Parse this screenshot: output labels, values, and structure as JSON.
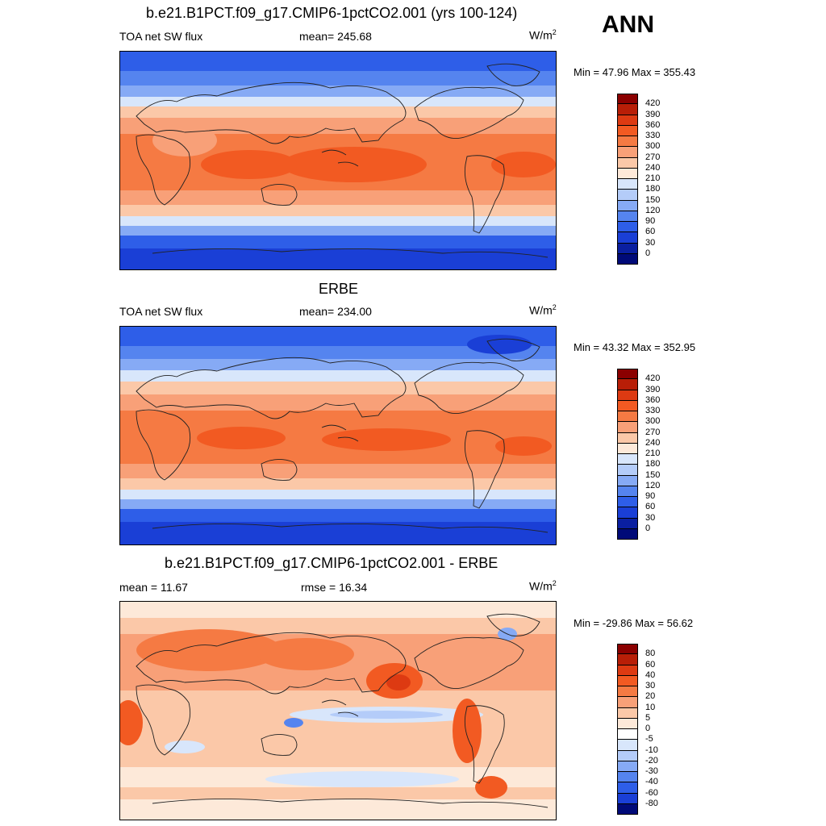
{
  "season": "ANN",
  "panels": [
    {
      "title": "b.e21.B1PCT.f09_g17.CMIP6-1pctCO2.001 (yrs 100-124)",
      "left_label": "TOA net SW flux",
      "center_label": "mean= 245.68",
      "units": "W/m",
      "units_exp": "2",
      "minmax": "Min =  47.96 Max = 355.43",
      "colorbar_labels": [
        "420",
        "390",
        "360",
        "330",
        "300",
        "270",
        "240",
        "210",
        "180",
        "150",
        "120",
        "90",
        "60",
        "30",
        "0"
      ]
    },
    {
      "title": "ERBE",
      "left_label": "TOA net SW flux",
      "center_label": "mean= 234.00",
      "units": "W/m",
      "units_exp": "2",
      "minmax": "Min =  43.32 Max = 352.95",
      "colorbar_labels": [
        "420",
        "390",
        "360",
        "330",
        "300",
        "270",
        "240",
        "210",
        "180",
        "150",
        "120",
        "90",
        "60",
        "30",
        "0"
      ]
    },
    {
      "title": "b.e21.B1PCT.f09_g17.CMIP6-1pctCO2.001 - ERBE",
      "left_label": "mean =  11.67",
      "center_label": "rmse =  16.34",
      "units": "W/m",
      "units_exp": "2",
      "minmax": "Min = -29.86 Max =  56.62",
      "colorbar_labels": [
        "80",
        "60",
        "40",
        "30",
        "20",
        "10",
        "5",
        "0",
        "-5",
        "-10",
        "-20",
        "-30",
        "-40",
        "-60",
        "-80"
      ]
    }
  ],
  "colors": {
    "abs_scale": [
      "#8b0000",
      "#b81e07",
      "#dd3a12",
      "#f25a22",
      "#f57a43",
      "#f8a078",
      "#fbc8a8",
      "#fde9d9",
      "#d8e6fb",
      "#b4ccf9",
      "#86aaf5",
      "#5584ef",
      "#2e5ee8",
      "#1a3fd6",
      "#0a1fa0",
      "#000a78"
    ],
    "diff_scale": [
      "#8b0000",
      "#b81e07",
      "#dd3a12",
      "#f25a22",
      "#f57a43",
      "#f8a078",
      "#fbc8a8",
      "#fde9d9",
      "#ffffff",
      "#d8e6fb",
      "#b4ccf9",
      "#86aaf5",
      "#5584ef",
      "#2e5ee8",
      "#1a3fd6",
      "#000a78"
    ]
  }
}
